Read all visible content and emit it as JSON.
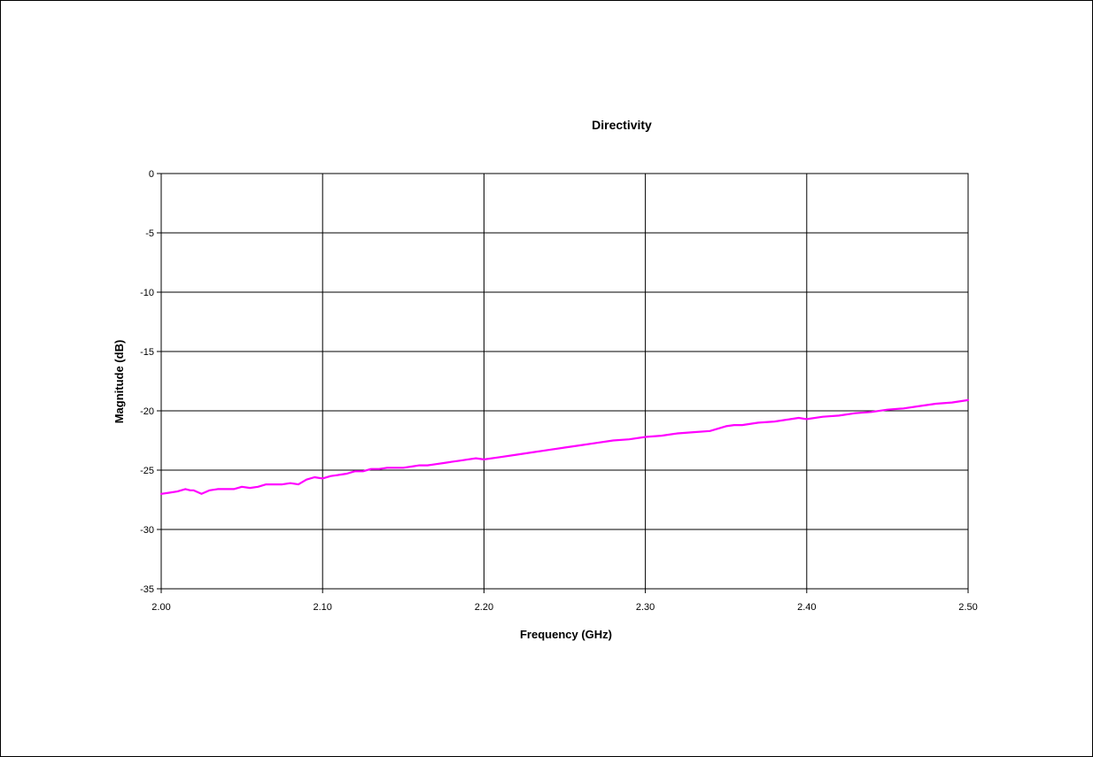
{
  "chart_data": {
    "type": "line",
    "title": "Directivity",
    "xlabel": "Frequency (GHz)",
    "ylabel": "Magnitude (dB)",
    "xlim": [
      2.0,
      2.5
    ],
    "ylim": [
      -35,
      0
    ],
    "xticks": [
      "2.00",
      "2.10",
      "2.20",
      "2.30",
      "2.40",
      "2.50"
    ],
    "yticks": [
      "0",
      "-5",
      "-10",
      "-15",
      "-20",
      "-25",
      "-30",
      "-35"
    ],
    "grid": true,
    "legend": "none",
    "series": [
      {
        "color": "#FF00FF",
        "x": [
          2.0,
          2.005,
          2.01,
          2.015,
          2.018,
          2.02,
          2.025,
          2.03,
          2.035,
          2.04,
          2.045,
          2.05,
          2.055,
          2.06,
          2.065,
          2.07,
          2.075,
          2.08,
          2.085,
          2.09,
          2.095,
          2.1,
          2.105,
          2.11,
          2.115,
          2.12,
          2.125,
          2.13,
          2.135,
          2.14,
          2.145,
          2.15,
          2.155,
          2.16,
          2.165,
          2.17,
          2.175,
          2.18,
          2.185,
          2.19,
          2.195,
          2.2,
          2.21,
          2.22,
          2.23,
          2.24,
          2.25,
          2.26,
          2.27,
          2.28,
          2.29,
          2.3,
          2.31,
          2.32,
          2.33,
          2.34,
          2.35,
          2.355,
          2.36,
          2.37,
          2.38,
          2.39,
          2.395,
          2.4,
          2.41,
          2.42,
          2.43,
          2.44,
          2.45,
          2.46,
          2.47,
          2.48,
          2.49,
          2.5
        ],
        "y": [
          -27.0,
          -26.9,
          -26.8,
          -26.6,
          -26.7,
          -26.7,
          -27.0,
          -26.7,
          -26.6,
          -26.6,
          -26.6,
          -26.4,
          -26.5,
          -26.4,
          -26.2,
          -26.2,
          -26.2,
          -26.1,
          -26.2,
          -25.8,
          -25.6,
          -25.7,
          -25.5,
          -25.4,
          -25.3,
          -25.1,
          -25.1,
          -24.9,
          -24.9,
          -24.8,
          -24.8,
          -24.8,
          -24.7,
          -24.6,
          -24.6,
          -24.5,
          -24.4,
          -24.3,
          -24.2,
          -24.1,
          -24.0,
          -24.1,
          -23.9,
          -23.7,
          -23.5,
          -23.3,
          -23.1,
          -22.9,
          -22.7,
          -22.5,
          -22.4,
          -22.2,
          -22.1,
          -21.9,
          -21.8,
          -21.7,
          -21.3,
          -21.2,
          -21.2,
          -21.0,
          -20.9,
          -20.7,
          -20.6,
          -20.7,
          -20.5,
          -20.4,
          -20.2,
          -20.1,
          -19.9,
          -19.8,
          -19.6,
          -19.4,
          -19.3,
          -19.1
        ]
      }
    ]
  }
}
